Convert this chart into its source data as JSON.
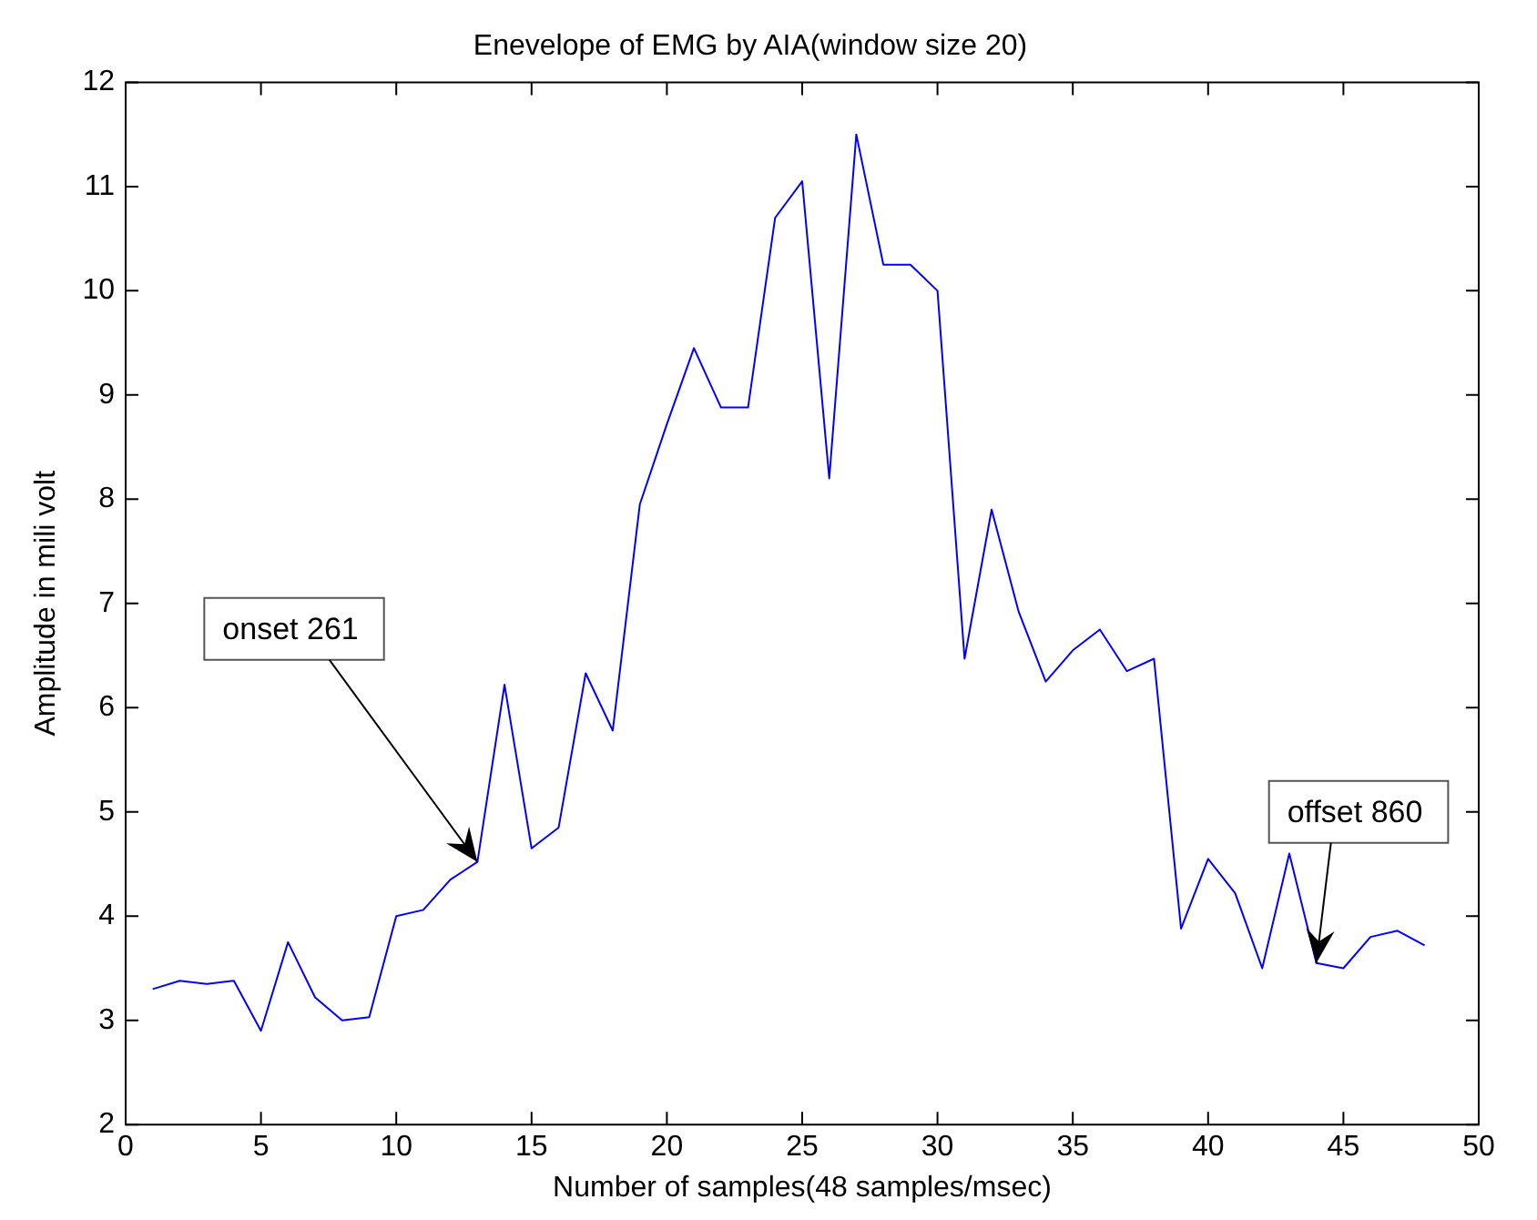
{
  "chart_data": {
    "type": "line",
    "title": "Enevelope of EMG by AIA(window size 20)",
    "xlabel": "Number of samples(48 samples/msec)",
    "ylabel": "Amplitude in mili volt",
    "x": [
      1,
      2,
      3,
      4,
      5,
      6,
      7,
      8,
      9,
      10,
      11,
      12,
      13,
      14,
      15,
      16,
      17,
      18,
      19,
      20,
      21,
      22,
      23,
      24,
      25,
      26,
      27,
      28,
      29,
      30,
      31,
      32,
      33,
      34,
      35,
      36,
      37,
      38,
      39,
      40,
      41,
      42,
      43,
      44,
      45,
      46,
      47,
      48
    ],
    "series": [
      {
        "color": "#0000ff",
        "values": [
          3.3,
          3.38,
          3.35,
          3.38,
          2.9,
          3.75,
          3.22,
          3.0,
          3.03,
          4.0,
          4.06,
          4.35,
          4.52,
          6.22,
          4.65,
          4.85,
          6.33,
          5.78,
          7.95,
          8.72,
          9.45,
          8.88,
          8.88,
          10.7,
          11.05,
          8.2,
          11.5,
          10.25,
          10.25,
          10.0,
          6.47,
          7.9,
          6.92,
          6.25,
          6.55,
          6.75,
          6.35,
          6.47,
          3.88,
          4.55,
          4.22,
          3.5,
          4.6,
          3.55,
          3.5,
          3.8,
          3.86,
          3.72
        ]
      }
    ],
    "xlim": [
      0,
      50
    ],
    "xticks": [
      0,
      5,
      10,
      15,
      20,
      25,
      30,
      35,
      40,
      45,
      50
    ],
    "ylim": [
      2,
      12
    ],
    "yticks": [
      2,
      3,
      4,
      5,
      6,
      7,
      8,
      9,
      10,
      11,
      12
    ],
    "marker": "none",
    "line_style": "solid",
    "legend": false,
    "annotations": [
      {
        "text": "onset 261",
        "x": 13,
        "y": 4.52
      },
      {
        "text": "offset 860",
        "x": 44,
        "y": 3.55
      }
    ]
  }
}
